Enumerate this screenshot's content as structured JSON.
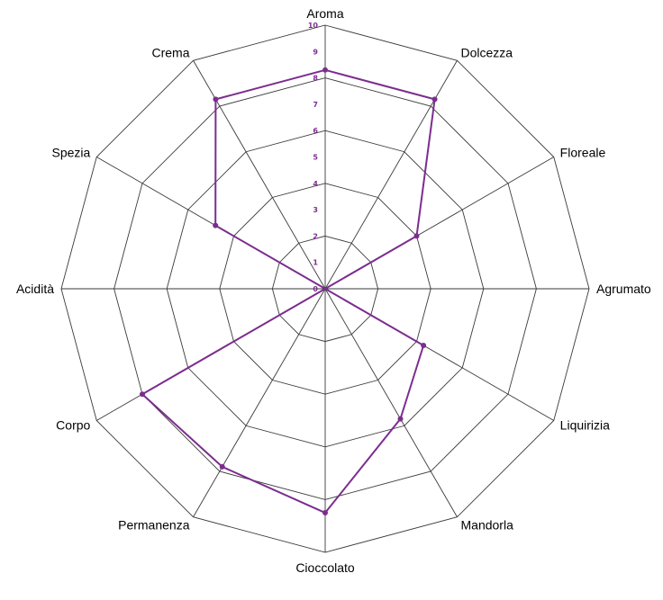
{
  "chart_data": {
    "type": "radar",
    "title": "",
    "categories": [
      "Aroma",
      "Dolcezza",
      "Floreale",
      "Agrumato",
      "Liquirizia",
      "Mandorla",
      "Cioccolato",
      "Permanenza",
      "Corpo",
      "Acidità",
      "Spezia",
      "Crema"
    ],
    "series": [
      {
        "values": [
          8.3,
          8.3,
          4,
          0,
          4.3,
          5.7,
          8.5,
          7.8,
          8,
          0,
          4.8,
          8.3
        ]
      }
    ],
    "rlim": [
      0,
      10
    ],
    "r_ticks": [
      "0",
      "1",
      "2",
      "3",
      "4",
      "5",
      "6",
      "7",
      "8",
      "9",
      "10"
    ],
    "grid": true,
    "colors": {
      "series": "#7b2d8e",
      "grid": "#3a3a3a",
      "tick_labels": "#7b2d8e"
    }
  }
}
